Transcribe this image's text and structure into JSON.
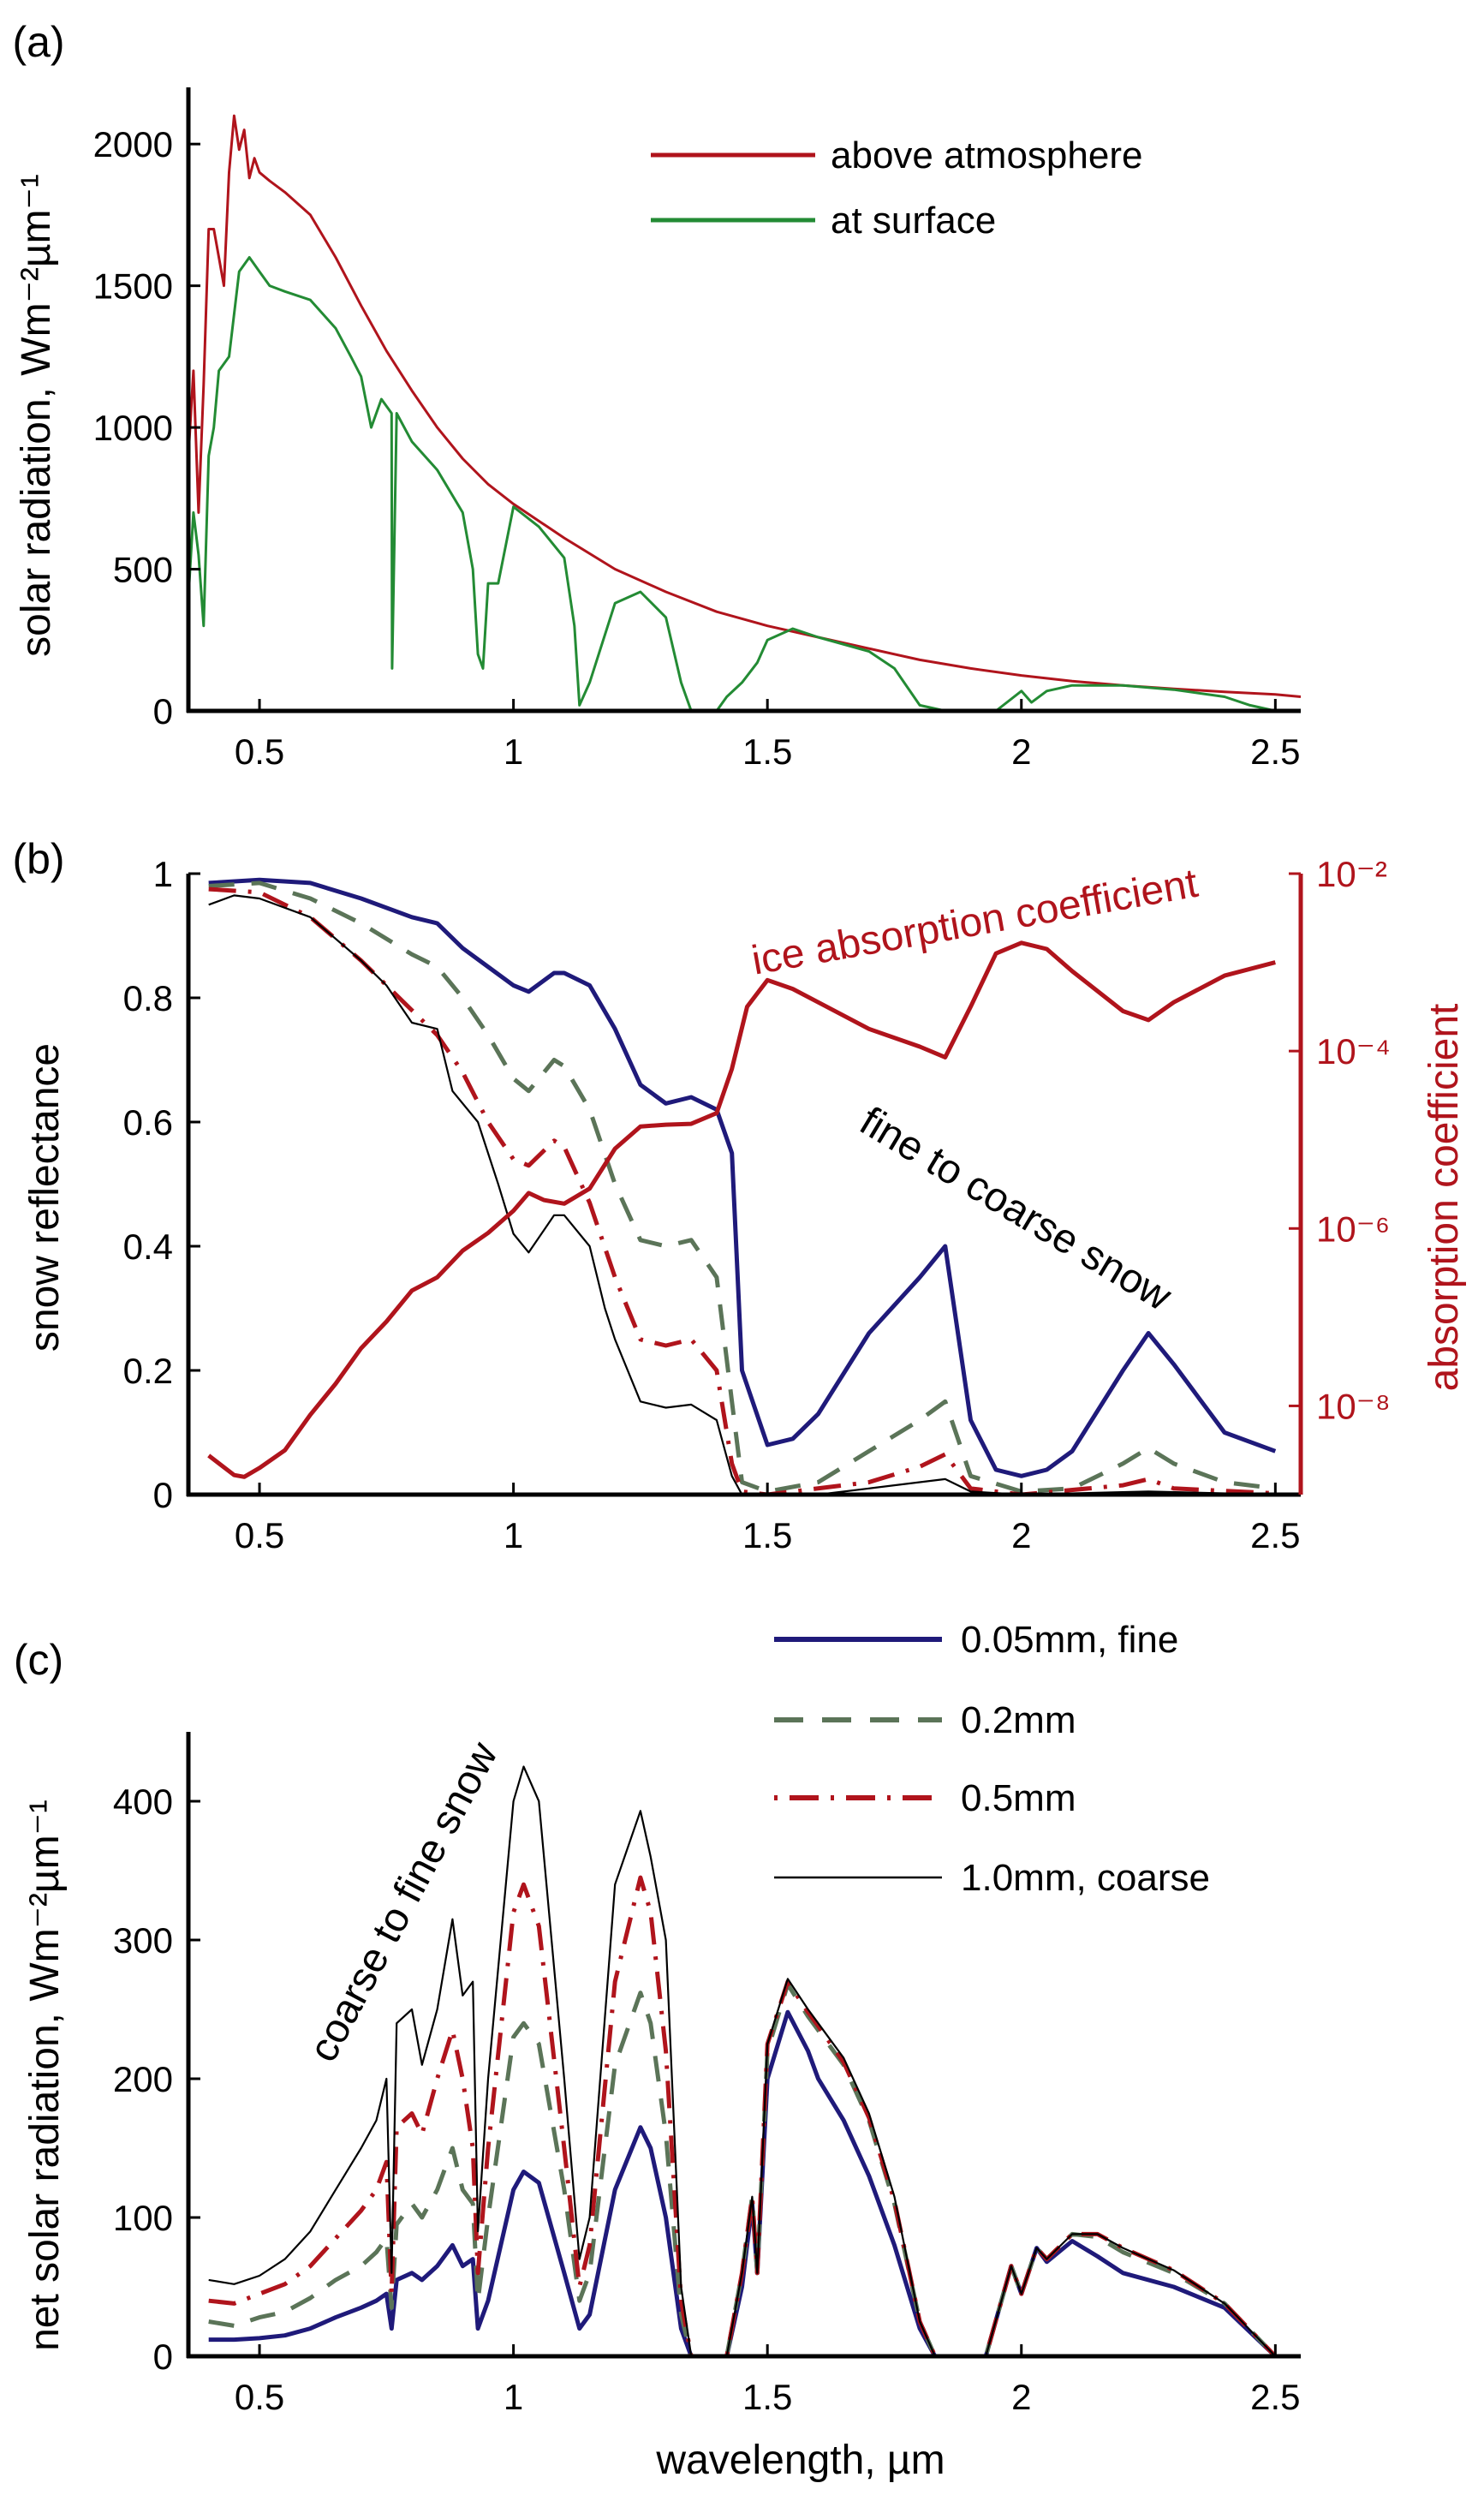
{
  "colors": {
    "red": "#b0141c",
    "green": "#238b34",
    "navy": "#1f1a7a",
    "dash_green": "#5b7458",
    "black": "#000000"
  },
  "chart_data": [
    {
      "panel": "(a)",
      "type": "line",
      "xlim": [
        0.36,
        2.55
      ],
      "ylim": [
        0,
        2200
      ],
      "xticks": [
        "0.5",
        "1",
        "1.5",
        "2",
        "2.5"
      ],
      "yticks": [
        "0",
        "500",
        "1000",
        "1500",
        "2000"
      ],
      "ylabel": "solar radiation, Wm⁻²µm⁻¹",
      "legend_placement": "top-right",
      "series": [
        {
          "name": "above atmosphere",
          "color": "#b0141c",
          "style": "solid",
          "x": [
            0.36,
            0.37,
            0.38,
            0.39,
            0.4,
            0.41,
            0.42,
            0.43,
            0.44,
            0.45,
            0.46,
            0.47,
            0.48,
            0.49,
            0.5,
            0.52,
            0.55,
            0.6,
            0.65,
            0.7,
            0.75,
            0.8,
            0.85,
            0.9,
            0.95,
            1.0,
            1.1,
            1.2,
            1.3,
            1.4,
            1.5,
            1.6,
            1.7,
            1.8,
            1.9,
            2.0,
            2.1,
            2.2,
            2.3,
            2.4,
            2.5,
            2.55
          ],
          "y": [
            900,
            1200,
            700,
            1150,
            1700,
            1700,
            1600,
            1500,
            1900,
            2100,
            1980,
            2050,
            1880,
            1950,
            1900,
            1870,
            1830,
            1750,
            1600,
            1430,
            1270,
            1130,
            1000,
            890,
            800,
            730,
            610,
            500,
            420,
            350,
            300,
            260,
            220,
            180,
            150,
            125,
            105,
            90,
            78,
            67,
            58,
            50
          ]
        },
        {
          "name": "at surface",
          "color": "#238b34",
          "style": "solid",
          "x": [
            0.36,
            0.37,
            0.38,
            0.39,
            0.4,
            0.41,
            0.42,
            0.44,
            0.46,
            0.48,
            0.5,
            0.52,
            0.55,
            0.6,
            0.65,
            0.68,
            0.7,
            0.72,
            0.74,
            0.76,
            0.761,
            0.77,
            0.8,
            0.85,
            0.9,
            0.92,
            0.93,
            0.94,
            0.95,
            0.97,
            1.0,
            1.05,
            1.1,
            1.12,
            1.13,
            1.15,
            1.2,
            1.25,
            1.3,
            1.33,
            1.35,
            1.4,
            1.42,
            1.45,
            1.48,
            1.5,
            1.55,
            1.6,
            1.7,
            1.75,
            1.8,
            1.85,
            1.95,
            2.0,
            2.02,
            2.05,
            2.1,
            2.2,
            2.3,
            2.4,
            2.45,
            2.5,
            2.55
          ],
          "y": [
            400,
            700,
            550,
            300,
            900,
            1000,
            1200,
            1250,
            1550,
            1600,
            1550,
            1500,
            1480,
            1450,
            1350,
            1250,
            1180,
            1000,
            1100,
            1050,
            150,
            1050,
            950,
            850,
            700,
            500,
            200,
            150,
            450,
            450,
            720,
            650,
            540,
            300,
            20,
            100,
            380,
            420,
            330,
            100,
            0,
            0,
            50,
            100,
            170,
            250,
            290,
            260,
            210,
            150,
            20,
            0,
            0,
            70,
            30,
            70,
            90,
            90,
            75,
            50,
            20,
            0,
            0
          ]
        }
      ]
    },
    {
      "panel": "(b)",
      "type": "line",
      "xlim": [
        0.36,
        2.55
      ],
      "ylim": [
        0,
        1
      ],
      "y2lim": [
        1e-09,
        0.01
      ],
      "y2scale": "log",
      "xticks": [
        "0.5",
        "1",
        "1.5",
        "2",
        "2.5"
      ],
      "yticks": [
        "0",
        "0.2",
        "0.4",
        "0.6",
        "0.8",
        "1"
      ],
      "y2ticks": [
        "10⁻⁸",
        "10⁻⁶",
        "10⁻⁴",
        "10⁻²"
      ],
      "ylabel": "snow reflectance",
      "y2label": "absorption coefficient",
      "annotations": [
        "ice absorption coefficient",
        "fine to coarse snow"
      ],
      "series": [
        {
          "grain": "0.05mm, fine",
          "color": "#1f1a7a",
          "style": "solid",
          "x": [
            0.4,
            0.5,
            0.6,
            0.7,
            0.8,
            0.85,
            0.9,
            0.95,
            1.0,
            1.03,
            1.08,
            1.1,
            1.15,
            1.2,
            1.25,
            1.3,
            1.35,
            1.4,
            1.43,
            1.45,
            1.5,
            1.55,
            1.6,
            1.7,
            1.8,
            1.85,
            1.9,
            1.95,
            2.0,
            2.05,
            2.1,
            2.2,
            2.25,
            2.3,
            2.4,
            2.5
          ],
          "y": [
            0.985,
            0.99,
            0.985,
            0.96,
            0.93,
            0.92,
            0.88,
            0.85,
            0.82,
            0.81,
            0.84,
            0.84,
            0.82,
            0.75,
            0.66,
            0.63,
            0.64,
            0.62,
            0.55,
            0.2,
            0.08,
            0.09,
            0.13,
            0.26,
            0.35,
            0.4,
            0.12,
            0.04,
            0.03,
            0.04,
            0.07,
            0.2,
            0.26,
            0.21,
            0.1,
            0.07
          ]
        },
        {
          "grain": "0.2mm",
          "color": "#5b7458",
          "style": "dashed",
          "x": [
            0.4,
            0.5,
            0.6,
            0.7,
            0.8,
            0.85,
            0.9,
            0.95,
            1.0,
            1.03,
            1.08,
            1.1,
            1.15,
            1.2,
            1.25,
            1.3,
            1.35,
            1.4,
            1.43,
            1.45,
            1.5,
            1.6,
            1.7,
            1.8,
            1.85,
            1.9,
            2.0,
            2.1,
            2.2,
            2.25,
            2.3,
            2.4,
            2.5
          ],
          "y": [
            0.98,
            0.985,
            0.96,
            0.92,
            0.87,
            0.85,
            0.8,
            0.74,
            0.67,
            0.65,
            0.7,
            0.69,
            0.62,
            0.5,
            0.41,
            0.4,
            0.41,
            0.35,
            0.15,
            0.02,
            0.005,
            0.02,
            0.07,
            0.12,
            0.15,
            0.03,
            0.005,
            0.01,
            0.05,
            0.075,
            0.05,
            0.02,
            0.01
          ]
        },
        {
          "grain": "0.5mm",
          "color": "#b0141c",
          "style": "dashdot",
          "x": [
            0.4,
            0.5,
            0.6,
            0.7,
            0.8,
            0.85,
            0.9,
            0.95,
            1.0,
            1.03,
            1.08,
            1.1,
            1.15,
            1.2,
            1.25,
            1.3,
            1.35,
            1.4,
            1.43,
            1.45,
            1.5,
            1.7,
            1.8,
            1.85,
            1.9,
            2.0,
            2.2,
            2.25,
            2.3,
            2.5
          ],
          "y": [
            0.975,
            0.97,
            0.93,
            0.86,
            0.78,
            0.74,
            0.68,
            0.6,
            0.54,
            0.53,
            0.57,
            0.56,
            0.47,
            0.35,
            0.25,
            0.24,
            0.25,
            0.2,
            0.05,
            0.005,
            0,
            0.02,
            0.045,
            0.065,
            0.01,
            0,
            0.015,
            0.025,
            0.01,
            0.002
          ]
        },
        {
          "grain": "1.0mm, coarse",
          "color": "#000000",
          "style": "thin",
          "x": [
            0.4,
            0.45,
            0.5,
            0.6,
            0.7,
            0.75,
            0.8,
            0.85,
            0.88,
            0.93,
            0.97,
            1.0,
            1.03,
            1.08,
            1.1,
            1.15,
            1.18,
            1.2,
            1.25,
            1.3,
            1.35,
            1.4,
            1.43,
            1.45,
            1.6,
            1.7,
            1.8,
            1.85,
            1.9,
            2.0,
            2.25,
            2.5
          ],
          "y": [
            0.95,
            0.965,
            0.96,
            0.93,
            0.86,
            0.82,
            0.76,
            0.75,
            0.65,
            0.6,
            0.5,
            0.42,
            0.39,
            0.45,
            0.45,
            0.4,
            0.3,
            0.25,
            0.15,
            0.14,
            0.145,
            0.12,
            0.03,
            0,
            0,
            0.01,
            0.02,
            0.025,
            0.005,
            0,
            0.005,
            0
          ]
        },
        {
          "name": "ice absorption coefficient",
          "color": "#b0141c",
          "style": "solid",
          "axis": "right",
          "x": [
            0.4,
            0.45,
            0.47,
            0.5,
            0.55,
            0.6,
            0.65,
            0.7,
            0.75,
            0.8,
            0.85,
            0.9,
            0.95,
            1.0,
            1.03,
            1.06,
            1.1,
            1.15,
            1.2,
            1.25,
            1.3,
            1.35,
            1.4,
            1.43,
            1.46,
            1.5,
            1.55,
            1.6,
            1.7,
            1.8,
            1.85,
            1.9,
            1.95,
            2.0,
            2.05,
            2.1,
            2.2,
            2.25,
            2.3,
            2.4,
            2.5
          ],
          "log10_y": [
            -8.56,
            -8.78,
            -8.8,
            -8.7,
            -8.5,
            -8.1,
            -7.75,
            -7.35,
            -7.05,
            -6.7,
            -6.55,
            -6.25,
            -6.05,
            -5.8,
            -5.6,
            -5.68,
            -5.72,
            -5.55,
            -5.1,
            -4.85,
            -4.83,
            -4.82,
            -4.7,
            -4.2,
            -3.5,
            -3.2,
            -3.3,
            -3.45,
            -3.75,
            -3.95,
            -4.07,
            -3.5,
            -2.9,
            -2.78,
            -2.85,
            -3.1,
            -3.55,
            -3.65,
            -3.45,
            -3.15,
            -3.0
          ]
        }
      ]
    },
    {
      "panel": "(c)",
      "type": "line",
      "xlim": [
        0.36,
        2.55
      ],
      "ylim": [
        0,
        450
      ],
      "xticks": [
        "0.5",
        "1",
        "1.5",
        "2",
        "2.5"
      ],
      "yticks": [
        "0",
        "100",
        "200",
        "300",
        "400"
      ],
      "xlabel": "wavelength, µm",
      "ylabel": "net solar radiation, Wm⁻²µm⁻¹",
      "annotations": [
        "coarse to fine snow"
      ],
      "legend_placement": "top-right",
      "x": [
        0.4,
        0.45,
        0.5,
        0.55,
        0.6,
        0.65,
        0.7,
        0.73,
        0.75,
        0.76,
        0.77,
        0.8,
        0.82,
        0.85,
        0.88,
        0.9,
        0.92,
        0.93,
        0.95,
        1.0,
        1.02,
        1.05,
        1.1,
        1.13,
        1.15,
        1.2,
        1.25,
        1.27,
        1.3,
        1.33,
        1.35,
        1.42,
        1.45,
        1.47,
        1.48,
        1.5,
        1.54,
        1.58,
        1.6,
        1.65,
        1.7,
        1.75,
        1.8,
        1.83,
        1.93,
        1.98,
        2.0,
        2.03,
        2.05,
        2.1,
        2.15,
        2.2,
        2.3,
        2.4,
        2.5
      ],
      "series": [
        {
          "name": "0.05mm, fine",
          "color": "#1f1a7a",
          "style": "solid",
          "y": [
            12,
            12,
            13,
            15,
            20,
            28,
            35,
            40,
            45,
            20,
            55,
            60,
            55,
            65,
            80,
            65,
            70,
            20,
            40,
            120,
            133,
            125,
            60,
            20,
            30,
            120,
            165,
            150,
            100,
            20,
            0,
            0,
            50,
            110,
            60,
            200,
            248,
            220,
            200,
            170,
            130,
            80,
            20,
            0,
            0,
            65,
            45,
            78,
            68,
            83,
            72,
            60,
            50,
            35,
            0
          ]
        },
        {
          "name": "0.2mm",
          "color": "#5b7458",
          "style": "dashed",
          "y": [
            25,
            22,
            28,
            32,
            42,
            55,
            65,
            75,
            85,
            35,
            95,
            110,
            100,
            120,
            150,
            120,
            110,
            40,
            100,
            230,
            240,
            225,
            120,
            40,
            60,
            210,
            262,
            240,
            160,
            30,
            0,
            0,
            60,
            115,
            60,
            220,
            268,
            245,
            235,
            210,
            170,
            110,
            25,
            0,
            0,
            65,
            45,
            78,
            70,
            88,
            86,
            75,
            60,
            38,
            0
          ]
        },
        {
          "name": "0.5mm",
          "color": "#b0141c",
          "style": "dashdot",
          "y": [
            40,
            38,
            45,
            52,
            65,
            85,
            105,
            120,
            140,
            45,
            165,
            175,
            160,
            200,
            235,
            200,
            150,
            60,
            150,
            320,
            340,
            310,
            150,
            50,
            80,
            270,
            345,
            320,
            220,
            40,
            0,
            0,
            60,
            115,
            60,
            225,
            270,
            248,
            238,
            212,
            172,
            112,
            25,
            0,
            0,
            65,
            45,
            78,
            70,
            88,
            88,
            78,
            62,
            38,
            0
          ]
        },
        {
          "name": "1.0mm, coarse",
          "color": "#000000",
          "style": "thin",
          "y": [
            55,
            52,
            58,
            70,
            90,
            120,
            150,
            170,
            200,
            60,
            240,
            250,
            210,
            250,
            315,
            260,
            270,
            90,
            200,
            400,
            425,
            400,
            200,
            70,
            100,
            340,
            393,
            360,
            300,
            50,
            0,
            0,
            60,
            115,
            60,
            225,
            272,
            250,
            240,
            215,
            175,
            115,
            25,
            0,
            0,
            65,
            45,
            78,
            70,
            88,
            88,
            78,
            62,
            38,
            0
          ]
        }
      ]
    }
  ]
}
